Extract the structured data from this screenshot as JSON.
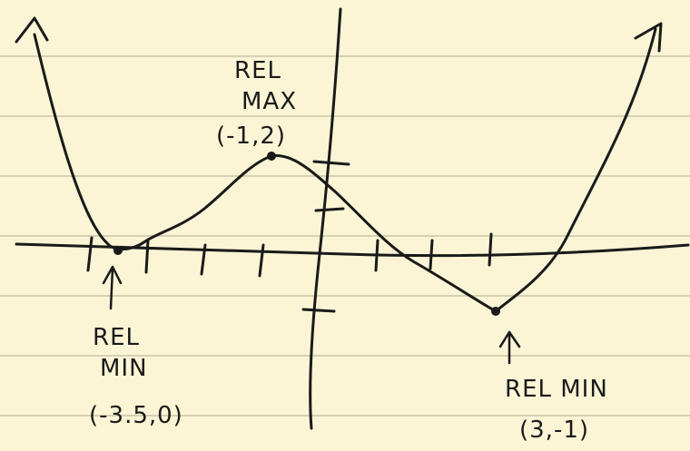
{
  "colors": {
    "paper": "#fbf5d6",
    "ruled_line": "#c9c3a9",
    "ink": "#1a1a1a"
  },
  "labels": {
    "left_min": {
      "line1": "REL",
      "line2": "MIN",
      "coords": "(-3.5,0)"
    },
    "max": {
      "line1": "REL",
      "line2": "MAX",
      "coords": "(-1,2)"
    },
    "right_min": {
      "line1": "REL MIN",
      "coords": "(3,-1)"
    }
  },
  "chart_data": {
    "type": "line",
    "title": "",
    "xlabel": "",
    "ylabel": "",
    "points": [
      {
        "x": -3.5,
        "y": 0
      },
      {
        "x": -1,
        "y": 2
      },
      {
        "x": 3,
        "y": -1
      }
    ],
    "annotated_points": [
      {
        "x": -3.5,
        "y": 0
      },
      {
        "x": -1,
        "y": 2
      },
      {
        "x": 3,
        "y": -1
      }
    ],
    "curve_shape": "rises off top-left, relative min, relative max, relative min, rises off top-right",
    "x_ticks": [
      -4,
      -3,
      -2,
      -1,
      1,
      2,
      3
    ],
    "y_ticks": [
      2,
      1,
      -1
    ],
    "grid": true
  }
}
